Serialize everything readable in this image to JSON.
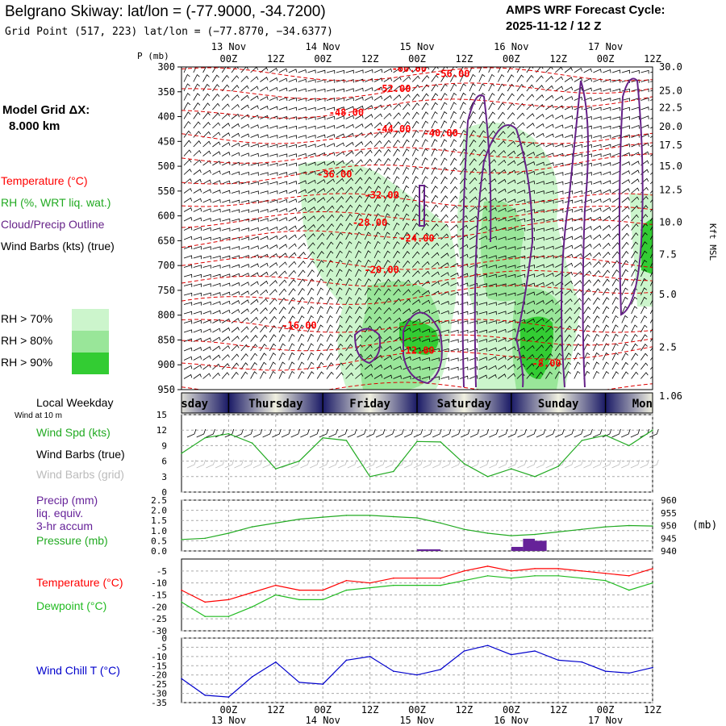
{
  "header": {
    "title": "Belgrano Skiway:  lat/lon = (-77.9000, -34.7200)",
    "grid_point": "Grid Point (517, 223) lat/lon = (−77.8770, −34.6377)",
    "cycle_label": "AMPS WRF Forecast Cycle:",
    "cycle_value": "2025-11-12 / 12  Z"
  },
  "left_panel": {
    "model_grid_label": "Model Grid ΔX:",
    "model_grid_value": "8.000 km",
    "legend_temperature": "Temperature (°C)",
    "legend_rh": "RH (%, WRT liq. wat.)",
    "legend_cloud": "Cloud/Precip Outline",
    "legend_wind": "Wind Barbs (kts) (true)",
    "rh_keys": [
      "RH > 70%",
      "RH > 80%",
      "RH > 90%"
    ],
    "local_weekday": "Local Weekday",
    "wind_at_10m": "Wind at 10 m"
  },
  "colors": {
    "temperature": "#ff0000",
    "temperature_contour": "#dd0000",
    "rh70": "#ccf5cc",
    "rh80": "#99e699",
    "rh90": "#33cc33",
    "cloud_outline": "#662288",
    "wind_spd": "#22aa22",
    "dewpoint": "#22bb22",
    "pressure": "#22aa22",
    "precip": "#662299",
    "wind_chill": "#0000cc",
    "grid": "#aaaaaa",
    "grid_barbs": "#bbbbbb"
  },
  "time_axis": {
    "tick_labels": [
      "00Z",
      "12Z",
      "00Z",
      "12Z",
      "00Z",
      "12Z",
      "00Z",
      "12Z",
      "00Z",
      "12Z"
    ],
    "tick_hours": [
      12,
      24,
      36,
      48,
      60,
      72,
      84,
      96,
      108,
      120
    ],
    "date_labels": [
      "13 Nov",
      "14 Nov",
      "15 Nov",
      "16 Nov",
      "17 Nov"
    ],
    "date_hours": [
      12,
      36,
      60,
      84,
      108
    ],
    "range_hours": [
      0,
      120
    ]
  },
  "weekday_bar": {
    "days": [
      {
        "label": "Wednesday",
        "start": -14,
        "end": 12
      },
      {
        "label": "Thursday",
        "start": 12,
        "end": 36
      },
      {
        "label": "Friday",
        "start": 36,
        "end": 60
      },
      {
        "label": "Saturday",
        "start": 60,
        "end": 84
      },
      {
        "label": "Sunday",
        "start": 84,
        "end": 108
      },
      {
        "label": "Monday",
        "start": 108,
        "end": 132
      }
    ]
  },
  "chart_data": [
    {
      "type": "heatmap",
      "name": "cross-section",
      "ylabel": "P (mb)",
      "ylabel_right": "Kft MSL",
      "pressure_ticks": [
        300,
        350,
        400,
        450,
        500,
        550,
        600,
        650,
        700,
        750,
        800,
        850,
        900,
        950
      ],
      "height_ticks": [
        "30.0",
        "25.0",
        "22.5",
        "20.0",
        "17.5",
        "15.0",
        "12.5",
        "10.0",
        "7.5",
        "5.0",
        "2.5",
        "1.06"
      ],
      "height_tick_pressures": [
        300,
        348,
        382,
        420,
        458,
        500,
        548,
        613,
        678,
        758,
        865,
        963
      ],
      "ylim": [
        300,
        950
      ],
      "temperature_contour_labels": [
        {
          "text": "-60.00",
          "hour": 58,
          "p": 310
        },
        {
          "text": "-56.00",
          "hour": 69,
          "p": 320
        },
        {
          "text": "-52.00",
          "hour": 54,
          "p": 350
        },
        {
          "text": "-48.00",
          "hour": 42,
          "p": 398
        },
        {
          "text": "-44.00",
          "hour": 54,
          "p": 432
        },
        {
          "text": "-40.00",
          "hour": 66,
          "p": 440
        },
        {
          "text": "-36.00",
          "hour": 39,
          "p": 523
        },
        {
          "text": "-32.00",
          "hour": 51,
          "p": 565
        },
        {
          "text": "-28.00",
          "hour": 48,
          "p": 620
        },
        {
          "text": "-24.00",
          "hour": 60,
          "p": 652
        },
        {
          "text": "-20.00",
          "hour": 51,
          "p": 715
        },
        {
          "text": "-16.00",
          "hour": 30,
          "p": 827
        },
        {
          "text": "-12.00",
          "hour": 60,
          "p": 878
        },
        {
          "text": "-8.00",
          "hour": 93,
          "p": 904
        }
      ]
    },
    {
      "type": "line",
      "name": "surface-wind",
      "labels": [
        "Wind Spd (kts)",
        "Wind Barbs (true)",
        "Wind Barbs (grid)"
      ],
      "y_ticks": [
        0,
        3,
        6,
        9,
        12,
        15
      ],
      "ylim": [
        0,
        15
      ],
      "x": [
        0,
        6,
        12,
        18,
        24,
        30,
        36,
        42,
        48,
        54,
        60,
        66,
        72,
        78,
        84,
        90,
        96,
        102,
        108,
        114,
        120
      ],
      "series": [
        {
          "name": "Wind Spd (kts)",
          "values": [
            7.5,
            10.5,
            11.3,
            9.5,
            4.5,
            6,
            10.5,
            10,
            3,
            4,
            9.8,
            9.7,
            5.5,
            3,
            4.5,
            3,
            5,
            10,
            11,
            9,
            12
          ]
        }
      ]
    },
    {
      "type": "line",
      "name": "precip-pressure",
      "labels": [
        "Precip (mm)",
        "liq. equiv.",
        "3-hr accum",
        "Pressure (mb)"
      ],
      "y_ticks": [
        "0.0",
        "0.5",
        "1.0",
        "1.5",
        "2.0",
        "2.5"
      ],
      "y_tick_values": [
        0,
        0.5,
        1,
        1.5,
        2,
        2.5
      ],
      "y2_ticks": [
        960,
        955,
        950,
        945,
        940
      ],
      "y2label": "(mb)",
      "ylim": [
        0,
        2.5
      ],
      "y2lim": [
        940,
        960
      ],
      "x": [
        0,
        6,
        12,
        18,
        24,
        30,
        36,
        42,
        48,
        54,
        60,
        66,
        72,
        78,
        84,
        90,
        96,
        102,
        108,
        114,
        120
      ],
      "series": [
        {
          "name": "Pressure (mb)",
          "axis": "right",
          "values": [
            944.5,
            945,
            947,
            949.5,
            951,
            952.5,
            953.3,
            954,
            954,
            953.5,
            953,
            951,
            948.5,
            947,
            946,
            946.5,
            947.5,
            948.5,
            949.5,
            950,
            949.8
          ]
        }
      ],
      "precip_bars": [
        {
          "start": 60,
          "end": 63,
          "value": 0.08
        },
        {
          "start": 63,
          "end": 66,
          "value": 0.08
        },
        {
          "start": 84,
          "end": 87,
          "value": 0.2
        },
        {
          "start": 87,
          "end": 90,
          "value": 0.6
        },
        {
          "start": 90,
          "end": 93,
          "value": 0.5
        }
      ]
    },
    {
      "type": "line",
      "name": "temp-dewpoint",
      "labels": [
        "Temperature (°C)",
        "Dewpoint (°C)"
      ],
      "y_ticks": [
        -5,
        -10,
        -15,
        -20,
        -25,
        -30
      ],
      "ylim": [
        -30,
        0
      ],
      "x": [
        0,
        6,
        12,
        18,
        24,
        30,
        36,
        42,
        48,
        54,
        60,
        66,
        72,
        78,
        84,
        90,
        96,
        102,
        108,
        114,
        120
      ],
      "series": [
        {
          "name": "Temperature (°C)",
          "values": [
            -13,
            -18,
            -17,
            -14,
            -11,
            -13,
            -13,
            -9,
            -10,
            -8,
            -8,
            -8,
            -5,
            -3,
            -5,
            -4,
            -4,
            -5,
            -6,
            -7,
            -4
          ]
        },
        {
          "name": "Dewpoint (°C)",
          "values": [
            -18,
            -24,
            -24,
            -20,
            -15,
            -17,
            -17,
            -13,
            -12,
            -11,
            -11,
            -11,
            -9,
            -7,
            -8,
            -7,
            -7,
            -8,
            -9,
            -13,
            -10
          ]
        }
      ]
    },
    {
      "type": "line",
      "name": "wind-chill",
      "labels": [
        "Wind Chill T (°C)"
      ],
      "y_ticks": [
        0,
        -5,
        -10,
        -15,
        -20,
        -25,
        -30,
        -35
      ],
      "ylim": [
        -35,
        0
      ],
      "x": [
        0,
        6,
        12,
        18,
        24,
        30,
        36,
        42,
        48,
        54,
        60,
        66,
        72,
        78,
        84,
        90,
        96,
        102,
        108,
        114,
        120
      ],
      "series": [
        {
          "name": "Wind Chill T (°C)",
          "values": [
            -22,
            -31,
            -32,
            -21,
            -13,
            -24,
            -25,
            -12,
            -10,
            -18,
            -20,
            -17,
            -7,
            -4,
            -9,
            -7,
            -12,
            -13,
            -18,
            -19,
            -16
          ]
        }
      ]
    }
  ]
}
